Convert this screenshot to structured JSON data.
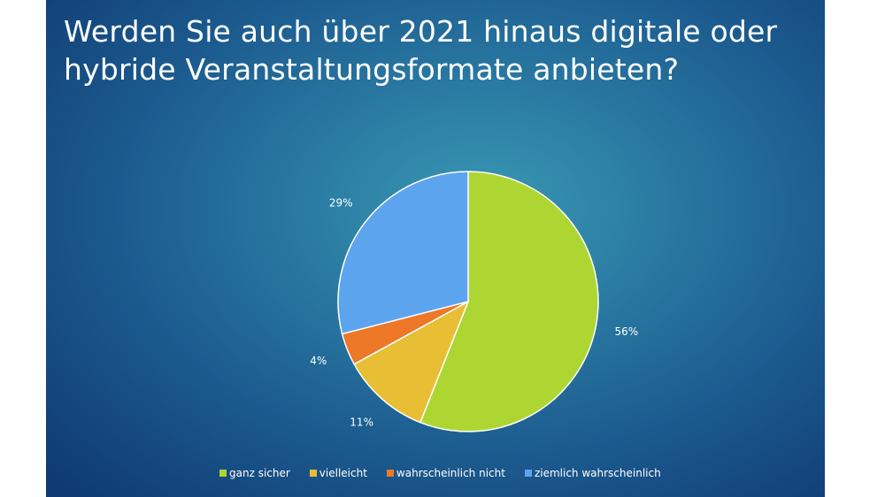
{
  "slide": {
    "title": "Werden Sie auch über 2021 hinaus digitale oder hybride Veranstaltungsformate anbieten?"
  },
  "chart_data": {
    "type": "pie",
    "title": "",
    "slices": [
      {
        "name": "ganz sicher",
        "value": 56,
        "label": "56%",
        "color": "#add633"
      },
      {
        "name": "vielleicht",
        "value": 11,
        "label": "11%",
        "color": "#e8be35"
      },
      {
        "name": "wahrscheinlich nicht",
        "value": 4,
        "label": "4%",
        "color": "#ec7828"
      },
      {
        "name": "ziemlich wahrscheinlich",
        "value": 29,
        "label": "29%",
        "color": "#5ca4ee"
      }
    ],
    "legend_position": "bottom",
    "slice_border_color": "#ffffff"
  }
}
